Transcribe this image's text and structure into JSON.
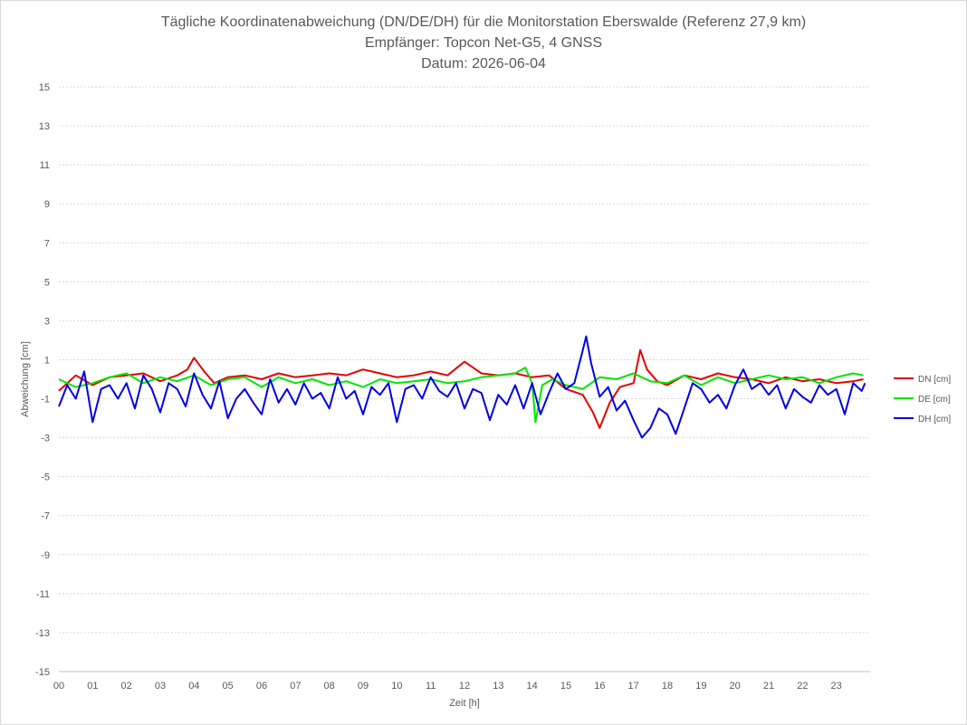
{
  "chart_data": {
    "type": "line",
    "title_lines": [
      "Tägliche Koordinatenabweichung (DN/DE/DH) für die Monitorstation Eberswalde (Referenz 27,9 km)",
      "Empfänger: Topcon Net-G5, 4 GNSS",
      "Datum: 2026-06-04"
    ],
    "xlabel": "Zeit [h]",
    "ylabel": "Abweichung [cm]",
    "xlim": [
      0,
      24
    ],
    "ylim": [
      -15,
      15
    ],
    "x_ticks": [
      "00",
      "01",
      "02",
      "03",
      "04",
      "05",
      "06",
      "07",
      "08",
      "09",
      "10",
      "11",
      "12",
      "13",
      "14",
      "15",
      "16",
      "17",
      "18",
      "19",
      "20",
      "21",
      "22",
      "23"
    ],
    "y_ticks": [
      "15",
      "13",
      "11",
      "9",
      "7",
      "5",
      "3",
      "1",
      "-1",
      "-3",
      "-5",
      "-7",
      "-9",
      "-11",
      "-13",
      "-15"
    ],
    "grid": "horizontal dotted",
    "legend_position": "right",
    "series": [
      {
        "name": "DN [cm]",
        "color": "#e60000",
        "x": [
          0,
          0.5,
          1,
          1.5,
          2,
          2.5,
          3,
          3.5,
          3.8,
          4,
          4.3,
          4.6,
          5,
          5.5,
          6,
          6.5,
          7,
          7.5,
          8,
          8.5,
          9,
          9.5,
          10,
          10.5,
          11,
          11.5,
          12,
          12.5,
          13,
          13.5,
          14,
          14.5,
          15,
          15.5,
          15.8,
          16,
          16.3,
          16.6,
          17,
          17.2,
          17.4,
          17.7,
          18,
          18.5,
          19,
          19.5,
          20,
          20.5,
          21,
          21.5,
          22,
          22.5,
          23,
          23.5,
          23.8
        ],
        "y": [
          -0.6,
          0.2,
          -0.3,
          0.1,
          0.2,
          0.3,
          -0.1,
          0.2,
          0.5,
          1.1,
          0.4,
          -0.2,
          0.1,
          0.2,
          0.0,
          0.3,
          0.1,
          0.2,
          0.3,
          0.2,
          0.5,
          0.3,
          0.1,
          0.2,
          0.4,
          0.2,
          0.9,
          0.3,
          0.2,
          0.3,
          0.1,
          0.2,
          -0.5,
          -0.8,
          -1.7,
          -2.5,
          -1.2,
          -0.4,
          -0.2,
          1.5,
          0.5,
          -0.1,
          -0.3,
          0.2,
          0.0,
          0.3,
          0.1,
          0.0,
          -0.2,
          0.1,
          -0.1,
          0.0,
          -0.2,
          -0.1,
          0.0
        ]
      },
      {
        "name": "DE [cm]",
        "color": "#00e600",
        "x": [
          0,
          0.5,
          1,
          1.5,
          2,
          2.5,
          3,
          3.5,
          4,
          4.5,
          5,
          5.5,
          6,
          6.5,
          7,
          7.5,
          8,
          8.5,
          9,
          9.5,
          10,
          10.5,
          11,
          11.5,
          12,
          12.5,
          13,
          13.5,
          13.8,
          14,
          14.1,
          14.3,
          14.6,
          15,
          15.5,
          16,
          16.5,
          17,
          17.5,
          18,
          18.5,
          19,
          19.5,
          20,
          20.5,
          21,
          21.5,
          22,
          22.5,
          23,
          23.5,
          23.8
        ],
        "y": [
          0.0,
          -0.4,
          -0.2,
          0.1,
          0.3,
          -0.2,
          0.1,
          -0.1,
          0.2,
          -0.3,
          0.0,
          0.1,
          -0.4,
          0.1,
          -0.2,
          0.0,
          -0.3,
          -0.1,
          -0.4,
          0.0,
          -0.2,
          -0.1,
          0.0,
          -0.2,
          -0.1,
          0.1,
          0.2,
          0.3,
          0.6,
          -0.2,
          -2.2,
          -0.3,
          0.0,
          -0.3,
          -0.5,
          0.1,
          0.0,
          0.3,
          -0.1,
          -0.2,
          0.2,
          -0.3,
          0.1,
          -0.2,
          0.0,
          0.2,
          0.0,
          0.1,
          -0.2,
          0.1,
          0.3,
          0.2
        ]
      },
      {
        "name": "DH [cm]",
        "color": "#0000e6",
        "x": [
          0,
          0.25,
          0.5,
          0.75,
          1,
          1.25,
          1.5,
          1.75,
          2,
          2.25,
          2.5,
          2.75,
          3,
          3.25,
          3.5,
          3.75,
          4,
          4.25,
          4.5,
          4.75,
          5,
          5.25,
          5.5,
          5.75,
          6,
          6.25,
          6.5,
          6.75,
          7,
          7.25,
          7.5,
          7.75,
          8,
          8.25,
          8.5,
          8.75,
          9,
          9.25,
          9.5,
          9.75,
          10,
          10.25,
          10.5,
          10.75,
          11,
          11.25,
          11.5,
          11.75,
          12,
          12.25,
          12.5,
          12.75,
          13,
          13.25,
          13.5,
          13.75,
          14,
          14.25,
          14.5,
          14.75,
          15,
          15.25,
          15.5,
          15.6,
          15.75,
          16,
          16.25,
          16.5,
          16.75,
          17,
          17.25,
          17.5,
          17.75,
          18,
          18.25,
          18.5,
          18.75,
          19,
          19.25,
          19.5,
          19.75,
          20,
          20.25,
          20.5,
          20.75,
          21,
          21.25,
          21.5,
          21.75,
          22,
          22.25,
          22.5,
          22.75,
          23,
          23.25,
          23.5,
          23.75,
          23.85
        ],
        "y": [
          -1.4,
          -0.3,
          -1.0,
          0.4,
          -2.2,
          -0.5,
          -0.3,
          -1.0,
          -0.2,
          -1.5,
          0.2,
          -0.5,
          -1.7,
          -0.2,
          -0.5,
          -1.4,
          0.3,
          -0.8,
          -1.5,
          -0.1,
          -2.0,
          -1.0,
          -0.5,
          -1.2,
          -1.8,
          0.0,
          -1.2,
          -0.5,
          -1.3,
          -0.2,
          -1.0,
          -0.7,
          -1.5,
          0.1,
          -1.0,
          -0.6,
          -1.8,
          -0.4,
          -0.8,
          -0.2,
          -2.2,
          -0.5,
          -0.3,
          -1.0,
          0.1,
          -0.6,
          -0.9,
          -0.2,
          -1.5,
          -0.5,
          -0.7,
          -2.1,
          -0.8,
          -1.3,
          -0.3,
          -1.5,
          -0.2,
          -1.8,
          -0.7,
          0.3,
          -0.5,
          -0.2,
          1.5,
          2.2,
          0.8,
          -0.9,
          -0.4,
          -1.6,
          -1.1,
          -2.1,
          -3.0,
          -2.5,
          -1.5,
          -1.8,
          -2.8,
          -1.5,
          -0.2,
          -0.5,
          -1.2,
          -0.8,
          -1.5,
          -0.3,
          0.5,
          -0.5,
          -0.2,
          -0.8,
          -0.3,
          -1.5,
          -0.5,
          -0.9,
          -1.2,
          -0.3,
          -0.8,
          -0.5,
          -1.8,
          -0.2,
          -0.6,
          -0.2
        ]
      }
    ]
  }
}
